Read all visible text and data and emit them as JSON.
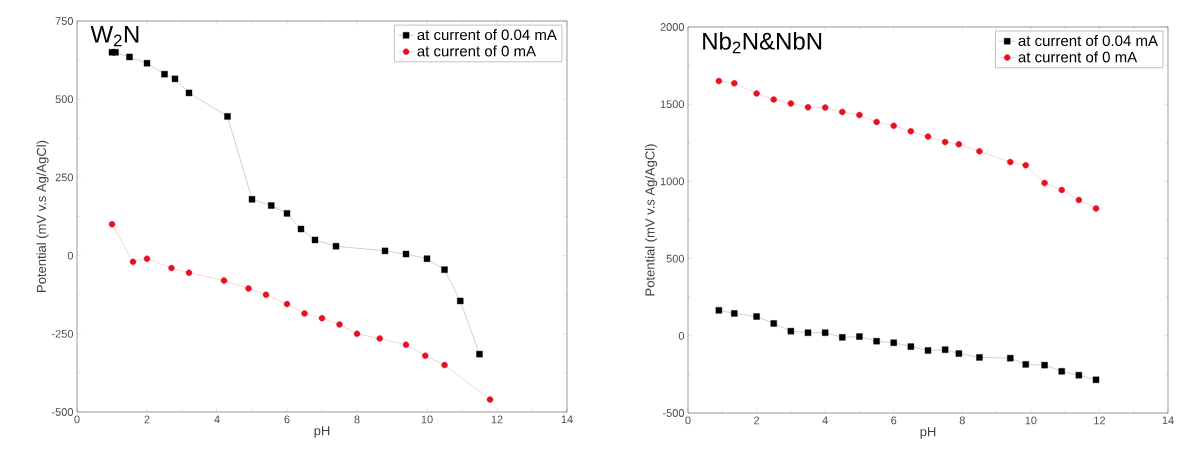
{
  "chart_data": [
    {
      "type": "line",
      "annotations": [
        "W$_{2}$N"
      ],
      "xlabel": "pH",
      "ylabel": "Potential (mV v.s Ag/AgCl)",
      "xlim": [
        0,
        14
      ],
      "xticks": [
        0,
        2,
        4,
        6,
        8,
        10,
        12,
        14
      ],
      "ylim": [
        -500,
        750
      ],
      "yticks": [
        -500,
        -250,
        0,
        250,
        500,
        750
      ],
      "legend": "top right",
      "grid": false,
      "series": [
        {
          "name": "at current of 0.04 mA",
          "color": "#000000",
          "marker": "square",
          "x": [
            1.0,
            1.1,
            1.5,
            2.0,
            2.5,
            2.8,
            3.2,
            4.3,
            5.0,
            5.55,
            6.0,
            6.4,
            6.8,
            7.4,
            8.8,
            9.4,
            10.0,
            10.5,
            10.95,
            11.5
          ],
          "values": [
            650,
            650,
            635,
            615,
            580,
            565,
            520,
            445,
            180,
            160,
            135,
            85,
            50,
            30,
            15,
            5,
            -10,
            -45,
            -145,
            -315
          ]
        },
        {
          "name": "at current of 0 mA",
          "color": "#e8101e",
          "marker": "circle",
          "x": [
            1.0,
            1.6,
            2.0,
            2.7,
            3.2,
            4.2,
            4.9,
            5.4,
            6.0,
            6.5,
            7.0,
            7.5,
            8.0,
            8.65,
            9.4,
            9.95,
            10.5,
            11.8
          ],
          "values": [
            100,
            -20,
            -10,
            -40,
            -55,
            -80,
            -105,
            -125,
            -155,
            -185,
            -200,
            -220,
            -250,
            -265,
            -285,
            -320,
            -350,
            -460
          ]
        }
      ]
    },
    {
      "type": "line",
      "annotations": [
        "Nb$_{2}$N&NbN"
      ],
      "xlabel": "pH",
      "ylabel": "Potential (mV v.s Ag/AgCl)",
      "xlim": [
        0,
        14
      ],
      "xticks": [
        0,
        2,
        4,
        6,
        8,
        10,
        12,
        14
      ],
      "ylim": [
        -500,
        2000
      ],
      "yticks": [
        -500,
        0,
        500,
        1000,
        1500,
        2000
      ],
      "legend": "top right",
      "grid": false,
      "series": [
        {
          "name": "at current of 0.04 mA",
          "color": "#000000",
          "marker": "square",
          "x": [
            0.9,
            1.35,
            2.0,
            2.5,
            3.0,
            3.5,
            4.0,
            4.5,
            5.0,
            5.5,
            6.0,
            6.5,
            7.0,
            7.5,
            7.9,
            8.5,
            9.4,
            9.85,
            10.4,
            10.9,
            11.4,
            11.9
          ],
          "values": [
            165,
            145,
            125,
            80,
            30,
            20,
            20,
            -10,
            -5,
            -35,
            -45,
            -70,
            -95,
            -90,
            -115,
            -140,
            -145,
            -185,
            -190,
            -230,
            -255,
            -285
          ]
        },
        {
          "name": "at current of 0 mA",
          "color": "#e8101e",
          "marker": "circle",
          "x": [
            0.9,
            1.35,
            2.0,
            2.5,
            3.0,
            3.5,
            4.0,
            4.5,
            5.0,
            5.5,
            6.0,
            6.5,
            7.0,
            7.5,
            7.9,
            8.5,
            9.4,
            9.85,
            10.4,
            10.9,
            11.4,
            11.9
          ],
          "values": [
            1650,
            1635,
            1570,
            1530,
            1505,
            1480,
            1478,
            1450,
            1430,
            1385,
            1360,
            1325,
            1290,
            1255,
            1240,
            1195,
            1125,
            1105,
            990,
            945,
            880,
            825
          ]
        }
      ]
    }
  ]
}
